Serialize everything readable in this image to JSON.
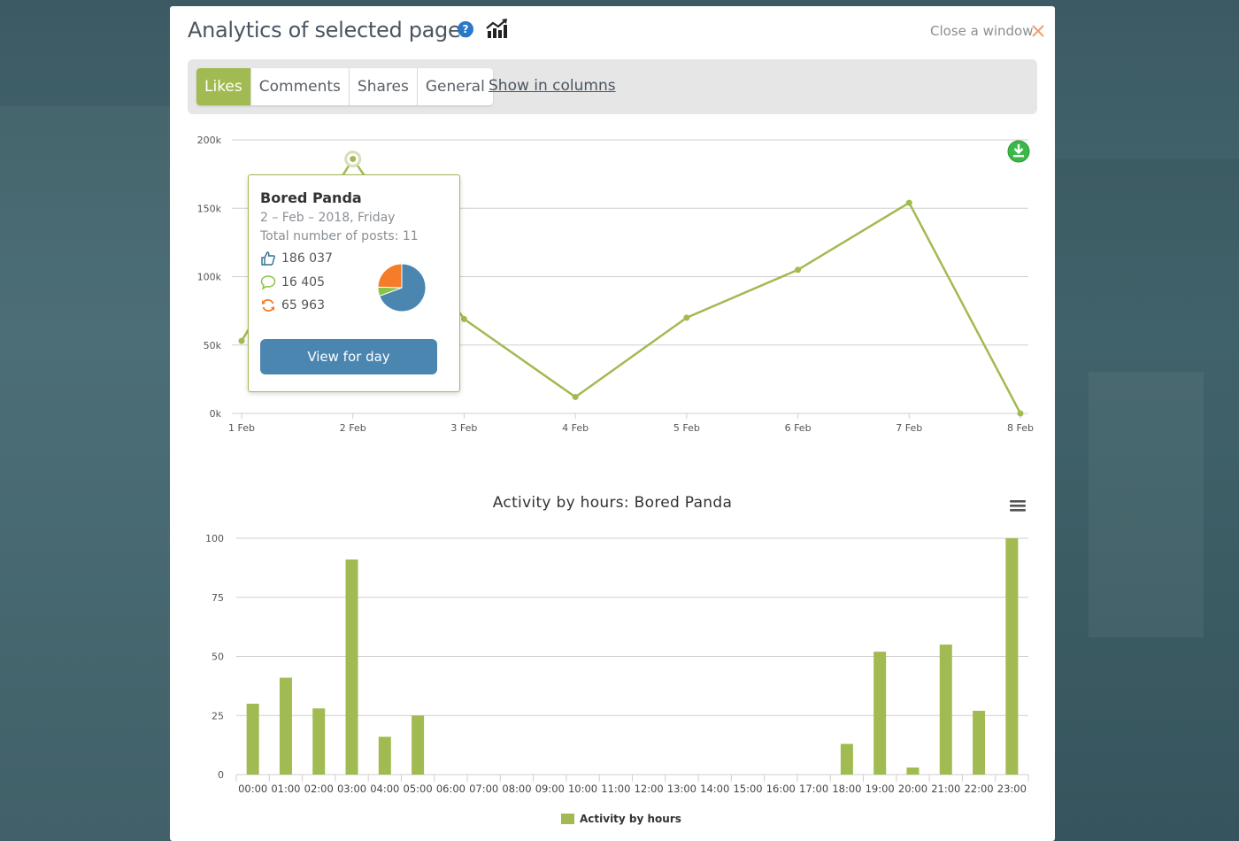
{
  "window": {
    "title": "Analytics of selected pages",
    "close_label": "Close a window"
  },
  "toolbar": {
    "tabs": [
      {
        "label": "Likes",
        "active": true
      },
      {
        "label": "Comments",
        "active": false
      },
      {
        "label": "Shares",
        "active": false
      },
      {
        "label": "General",
        "active": false
      }
    ],
    "show_columns_label": "Show in columns"
  },
  "colors": {
    "accent": "#a2ba52",
    "button": "#4a86b0",
    "comments": "#8bc34a",
    "shares": "#f57c29",
    "likes_pie": "#4a86b0"
  },
  "icons": {
    "help": "question-circle-icon",
    "trend": "trend-chart-icon",
    "close": "close-x-icon",
    "download": "download-icon",
    "menu": "hamburger-menu-icon",
    "likes": "thumbs-up-icon",
    "comments": "speech-bubble-icon",
    "shares": "refresh-arrows-icon"
  },
  "tooltip": {
    "title": "Bored Panda",
    "date": "2 – Feb – 2018, Friday",
    "posts": "Total number of posts: 11",
    "likes": "186 037",
    "comments": "16 405",
    "shares": "65 963",
    "button_label": "View for day",
    "pie": [
      186037,
      16405,
      65963
    ]
  },
  "chart_data": [
    {
      "type": "line",
      "categories": [
        "1 Feb",
        "2 Feb",
        "3 Feb",
        "4 Feb",
        "5 Feb",
        "6 Feb",
        "7 Feb",
        "8 Feb"
      ],
      "values": [
        53000,
        186037,
        69000,
        12000,
        70000,
        105000,
        154000,
        0
      ],
      "yticks": [
        "0k",
        "50k",
        "100k",
        "150k",
        "200k"
      ],
      "ylim": [
        0,
        200000
      ],
      "highlight_index": 1
    },
    {
      "type": "bar",
      "title": "Activity by hours: Bored Panda",
      "categories": [
        "00:00",
        "01:00",
        "02:00",
        "03:00",
        "04:00",
        "05:00",
        "06:00",
        "07:00",
        "08:00",
        "09:00",
        "10:00",
        "11:00",
        "12:00",
        "13:00",
        "14:00",
        "15:00",
        "16:00",
        "17:00",
        "18:00",
        "19:00",
        "20:00",
        "21:00",
        "22:00",
        "23:00"
      ],
      "series": [
        {
          "name": "Activity by hours",
          "values": [
            30,
            41,
            28,
            91,
            16,
            25,
            0,
            0,
            0,
            0,
            0,
            0,
            0,
            0,
            0,
            0,
            0,
            0,
            13,
            52,
            3,
            55,
            27,
            100
          ]
        }
      ],
      "yticks": [
        "0",
        "25",
        "50",
        "75",
        "100"
      ],
      "ylim": [
        0,
        100
      ]
    }
  ]
}
